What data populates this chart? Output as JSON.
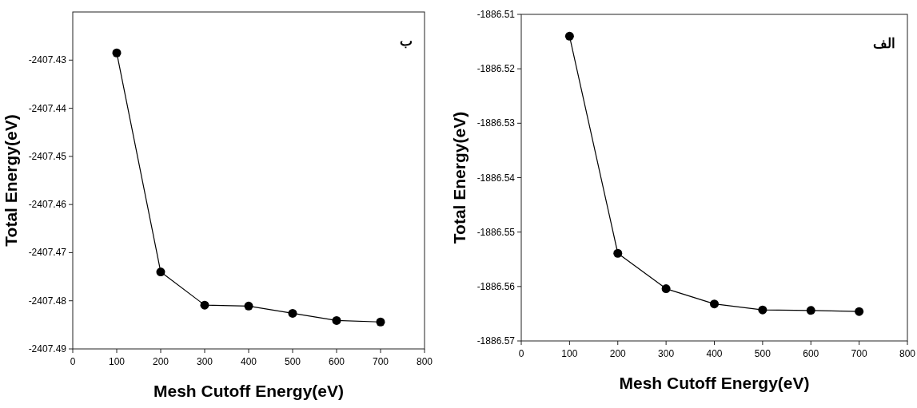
{
  "chart_data": [
    {
      "type": "line",
      "xlabel": "Mesh Cutoff Energy(eV)",
      "ylabel": "Total Energy(eV)",
      "annotations": [
        "ب"
      ],
      "color": "#000000",
      "marker": "circle",
      "line_style": "solid",
      "x": [
        100,
        200,
        300,
        400,
        500,
        600,
        700
      ],
      "values": [
        -2407.4285,
        -2407.474,
        -2407.4809,
        -2407.4811,
        -2407.4826,
        -2407.4841,
        -2407.4844
      ],
      "xlim": [
        0,
        800
      ],
      "xticks": [
        0,
        100,
        200,
        300,
        400,
        500,
        600,
        700,
        800
      ],
      "ylim": [
        -2407.49,
        -2407.42
      ],
      "yticks": [
        -2407.49,
        -2407.48,
        -2407.47,
        -2407.46,
        -2407.45,
        -2407.44,
        -2407.43
      ]
    },
    {
      "type": "line",
      "xlabel": "Mesh Cutoff Energy(eV)",
      "ylabel": "Total Energy(eV)",
      "annotations": [
        "الف"
      ],
      "color": "#000000",
      "marker": "circle",
      "line_style": "solid",
      "x": [
        100,
        200,
        300,
        400,
        500,
        600,
        700
      ],
      "values": [
        -1886.514,
        -1886.5539,
        -1886.5604,
        -1886.5632,
        -1886.5643,
        -1886.5644,
        -1886.5646
      ],
      "xlim": [
        0,
        800
      ],
      "xticks": [
        0,
        100,
        200,
        300,
        400,
        500,
        600,
        700,
        800
      ],
      "ylim": [
        -1886.57,
        -1886.51
      ],
      "yticks": [
        -1886.57,
        -1886.56,
        -1886.55,
        -1886.54,
        -1886.53,
        -1886.52,
        -1886.51
      ]
    }
  ]
}
